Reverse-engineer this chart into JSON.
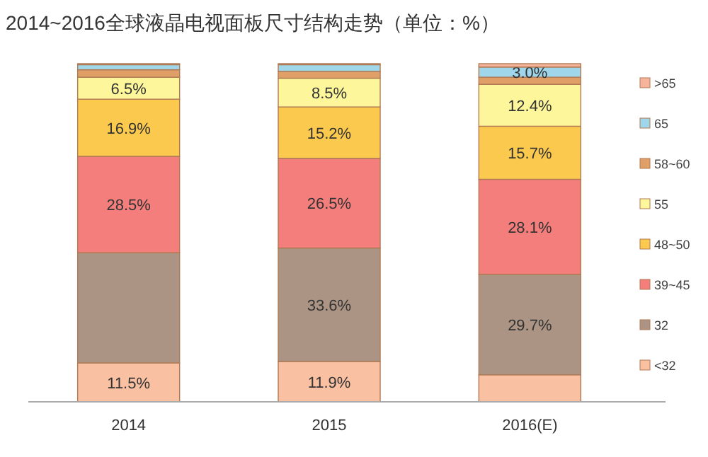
{
  "chart_data": {
    "type": "bar",
    "stacked": true,
    "title": "2014~2016全球液晶电视面板尺寸结构走势（单位：%）",
    "categories": [
      "2014",
      "2015",
      "2016(E)"
    ],
    "ylim": [
      0,
      100
    ],
    "legend": "right",
    "series": [
      {
        "name": "<32",
        "color": "#f9c0a2",
        "values": [
          11.5,
          11.9,
          8.0
        ],
        "value_labels": [
          "11.5%",
          "11.9%",
          null
        ]
      },
      {
        "name": "32",
        "color": "#ab9484",
        "values": [
          32.6,
          33.6,
          29.7
        ],
        "value_labels": [
          null,
          "33.6%",
          "29.7%"
        ]
      },
      {
        "name": "39~45",
        "color": "#f47e7c",
        "values": [
          28.5,
          26.5,
          28.1
        ],
        "value_labels": [
          "28.5%",
          "26.5%",
          "28.1%"
        ]
      },
      {
        "name": "48~50",
        "color": "#fcc94f",
        "values": [
          16.9,
          15.2,
          15.7
        ],
        "value_labels": [
          "16.9%",
          "15.2%",
          "15.7%"
        ]
      },
      {
        "name": "55",
        "color": "#fdf69b",
        "values": [
          6.5,
          8.5,
          12.4
        ],
        "value_labels": [
          "6.5%",
          "8.5%",
          "12.4%"
        ]
      },
      {
        "name": "58~60",
        "color": "#df9f66",
        "values": [
          2.2,
          2.0,
          2.1
        ],
        "value_labels": [
          null,
          null,
          null
        ]
      },
      {
        "name": "65",
        "color": "#9fd6ea",
        "values": [
          1.5,
          2.0,
          3.0
        ],
        "value_labels": [
          null,
          null,
          "3.0%"
        ]
      },
      {
        "name": ">65",
        "color": "#f6b49a",
        "values": [
          0.3,
          0.3,
          1.0
        ],
        "value_labels": [
          null,
          null,
          null
        ]
      }
    ]
  }
}
